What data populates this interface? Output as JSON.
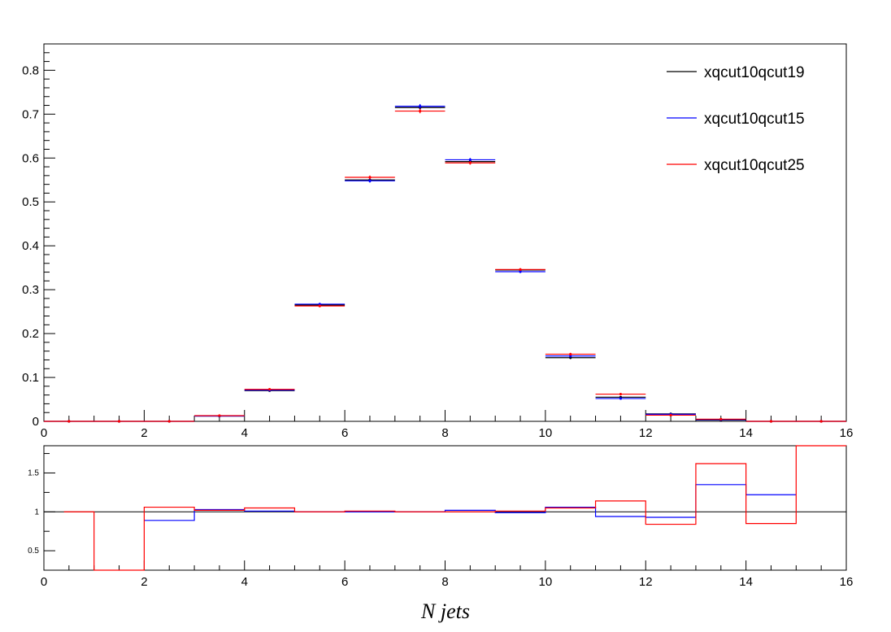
{
  "chart_data": [
    {
      "type": "histogram",
      "title": "",
      "xlabel": "",
      "ylabel": "",
      "xlim": [
        0,
        16
      ],
      "ylim": [
        0,
        0.86
      ],
      "x_ticks": [
        "0",
        "2",
        "4",
        "6",
        "8",
        "10",
        "12",
        "14",
        "16"
      ],
      "y_ticks": [
        "0",
        "0.1",
        "0.2",
        "0.3",
        "0.4",
        "0.5",
        "0.6",
        "0.7",
        "0.8"
      ],
      "bin_edges": [
        0,
        1,
        2,
        3,
        4,
        5,
        6,
        7,
        8,
        9,
        10,
        11,
        12,
        13,
        14,
        15,
        16
      ],
      "legend": {
        "position": "top-right",
        "entries": [
          "xqcut10qcut19",
          "xqcut10qcut15",
          "xqcut10qcut25"
        ]
      },
      "series": [
        {
          "name": "xqcut10qcut19",
          "color": "#000000",
          "values": [
            0,
            0,
            0,
            0.012,
            0.07,
            0.265,
            0.55,
            0.715,
            0.592,
            0.345,
            0.145,
            0.055,
            0.017,
            0.003,
            0,
            0
          ],
          "errors": [
            0,
            0,
            0,
            0.001,
            0.002,
            0.003,
            0.004,
            0.005,
            0.004,
            0.003,
            0.003,
            0.002,
            0.001,
            0.0005,
            0,
            0
          ]
        },
        {
          "name": "xqcut10qcut15",
          "color": "#0000ff",
          "values": [
            0,
            0,
            0,
            0.012,
            0.071,
            0.267,
            0.548,
            0.718,
            0.596,
            0.341,
            0.149,
            0.052,
            0.016,
            0.004,
            0,
            0
          ],
          "errors": [
            0,
            0,
            0,
            0.001,
            0.002,
            0.003,
            0.004,
            0.005,
            0.004,
            0.003,
            0.003,
            0.002,
            0.001,
            0.0005,
            0,
            0
          ]
        },
        {
          "name": "xqcut10qcut25",
          "color": "#ff0000",
          "values": [
            0,
            0,
            0,
            0.013,
            0.073,
            0.263,
            0.556,
            0.707,
            0.589,
            0.346,
            0.153,
            0.062,
            0.014,
            0.005,
            0,
            0
          ],
          "errors": [
            0,
            0,
            0,
            0.001,
            0.002,
            0.003,
            0.004,
            0.005,
            0.004,
            0.003,
            0.003,
            0.002,
            0.001,
            0.0005,
            0,
            0
          ]
        }
      ]
    },
    {
      "type": "histogram",
      "title": "",
      "xlabel": "N jets",
      "ylabel": "",
      "xlim": [
        0,
        16
      ],
      "ylim": [
        0.25,
        1.85
      ],
      "x_ticks": [
        "0",
        "2",
        "4",
        "6",
        "8",
        "10",
        "12",
        "14",
        "16"
      ],
      "y_ticks": [
        "0.5",
        "1",
        "1.5"
      ],
      "reference_line": 1,
      "series": [
        {
          "name": "",
          "color": "#0000ff",
          "bins": [
            {
              "lo": 2,
              "hi": 3,
              "value": 0.89
            },
            {
              "lo": 3,
              "hi": 4,
              "value": 1.03
            },
            {
              "lo": 4,
              "hi": 5,
              "value": 1.01
            },
            {
              "lo": 5,
              "hi": 6,
              "value": 1.0
            },
            {
              "lo": 6,
              "hi": 7,
              "value": 1.0
            },
            {
              "lo": 7,
              "hi": 8,
              "value": 1.0
            },
            {
              "lo": 8,
              "hi": 9,
              "value": 1.02
            },
            {
              "lo": 9,
              "hi": 10,
              "value": 0.99
            },
            {
              "lo": 10,
              "hi": 11,
              "value": 1.06
            },
            {
              "lo": 11,
              "hi": 12,
              "value": 0.94
            },
            {
              "lo": 12,
              "hi": 13,
              "value": 0.93
            },
            {
              "lo": 13,
              "hi": 14,
              "value": 1.35
            },
            {
              "lo": 14,
              "hi": 15,
              "value": 1.22
            }
          ]
        },
        {
          "name": "",
          "color": "#ff0000",
          "bins": [
            {
              "lo": 0.4,
              "hi": 1,
              "value": 1.0
            },
            {
              "lo": 1,
              "hi": 2,
              "value": 0.25
            },
            {
              "lo": 2,
              "hi": 3,
              "value": 1.06
            },
            {
              "lo": 3,
              "hi": 4,
              "value": 1.02
            },
            {
              "lo": 4,
              "hi": 5,
              "value": 1.05
            },
            {
              "lo": 5,
              "hi": 6,
              "value": 1.0
            },
            {
              "lo": 6,
              "hi": 7,
              "value": 1.01
            },
            {
              "lo": 7,
              "hi": 8,
              "value": 1.0
            },
            {
              "lo": 8,
              "hi": 9,
              "value": 1.0
            },
            {
              "lo": 9,
              "hi": 10,
              "value": 1.01
            },
            {
              "lo": 10,
              "hi": 11,
              "value": 1.05
            },
            {
              "lo": 11,
              "hi": 12,
              "value": 1.14
            },
            {
              "lo": 12,
              "hi": 13,
              "value": 0.84
            },
            {
              "lo": 13,
              "hi": 14,
              "value": 1.62
            },
            {
              "lo": 14,
              "hi": 15,
              "value": 0.85
            },
            {
              "lo": 15,
              "hi": 16,
              "value": 1.85
            }
          ]
        }
      ]
    }
  ]
}
